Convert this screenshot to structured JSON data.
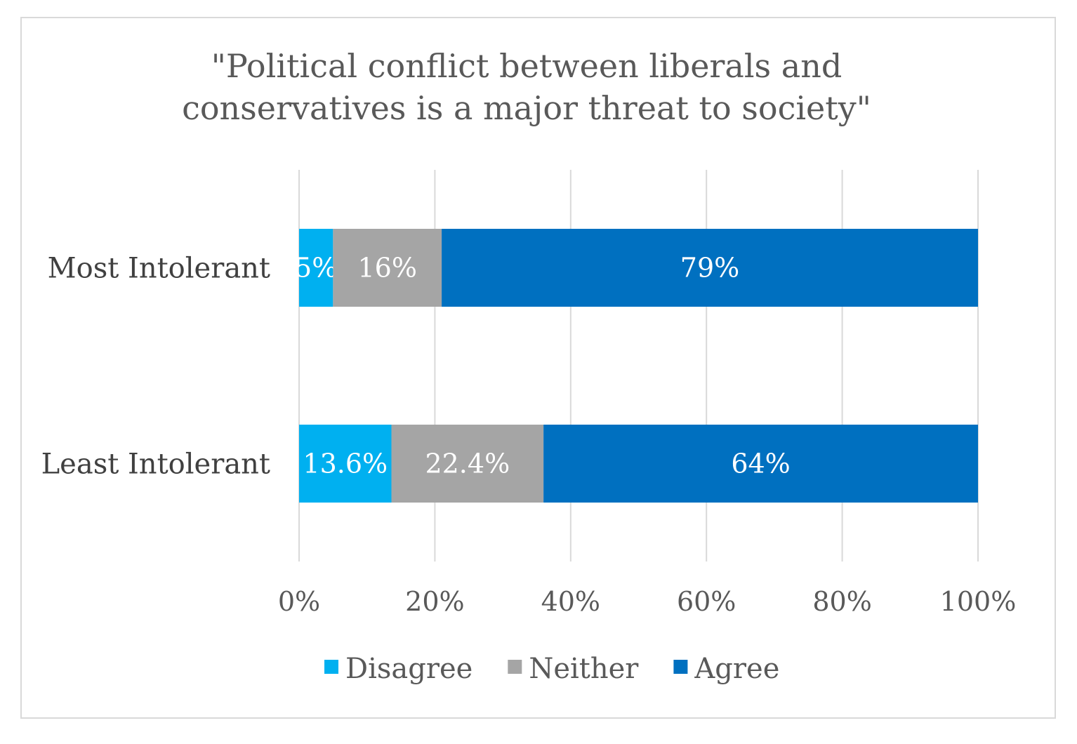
{
  "chart_data": {
    "type": "bar",
    "orientation": "horizontal",
    "stacked": true,
    "title": [
      "\"Political conflict between liberals and",
      "conservatives is a major threat to society\""
    ],
    "categories": [
      "Most Intolerant",
      "Least Intolerant"
    ],
    "series": [
      {
        "name": "Disagree",
        "color": "#00b0f0",
        "values": [
          5,
          13.6
        ],
        "labels": [
          "5%",
          "13.6%"
        ]
      },
      {
        "name": "Neither",
        "color": "#a5a5a5",
        "values": [
          16,
          22.4
        ],
        "labels": [
          "16%",
          "22.4%"
        ]
      },
      {
        "name": "Agree",
        "color": "#0070c0",
        "values": [
          79,
          64
        ],
        "labels": [
          "79%",
          "64%"
        ]
      }
    ],
    "xlim": [
      0,
      100
    ],
    "xticks": [
      "0%",
      "20%",
      "40%",
      "60%",
      "80%",
      "100%"
    ],
    "grid": true,
    "legend": "bottom"
  }
}
